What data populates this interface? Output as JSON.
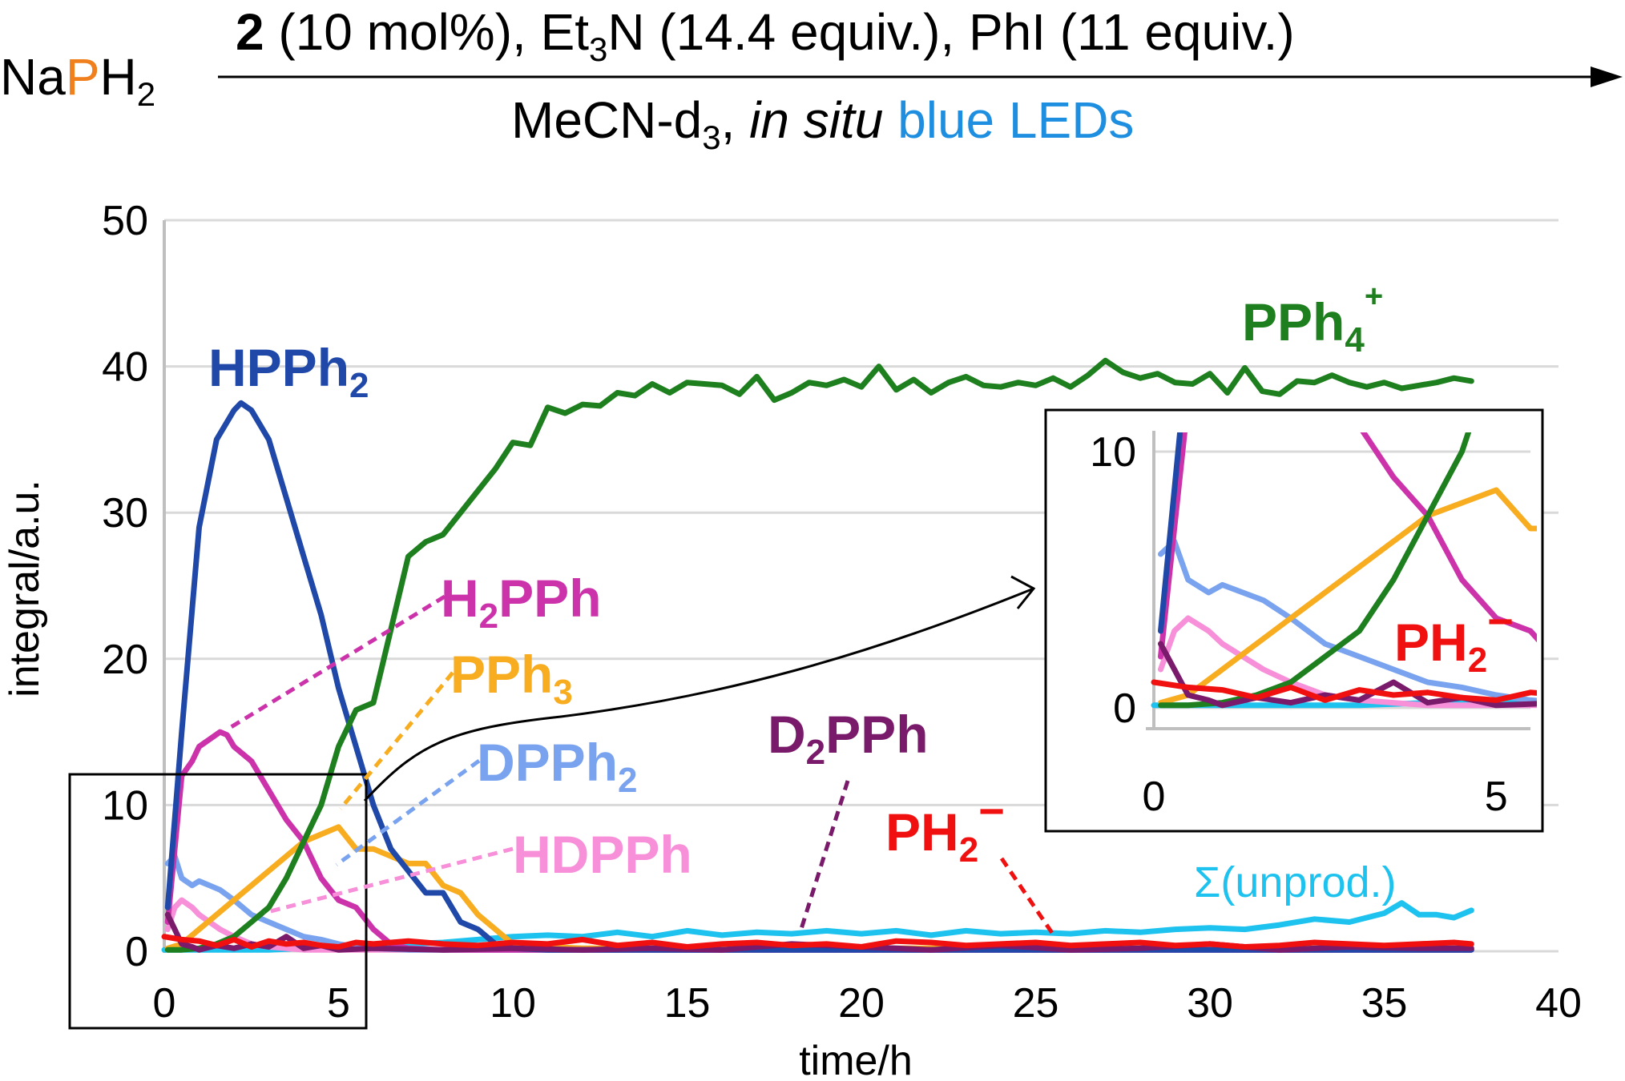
{
  "scheme": {
    "reactant_na": "Na",
    "reactant_p": "P",
    "reactant_h": "H",
    "reactant_sub": "2",
    "above_cat": "2",
    "above_rest_1": " (10 mol%), Et",
    "above_sub": "3",
    "above_rest_2": "N (14.4 equiv.), PhI (11 equiv.)",
    "below_1": "MeCN-d",
    "below_sub": "3",
    "below_2": ", ",
    "below_italic": "in situ",
    "below_blue": " blue LEDs",
    "color_p": "#f0801e",
    "color_blue_text": "#1e8fe0"
  },
  "chart_data": {
    "type": "line",
    "xlabel": "time/h",
    "ylabel": "integral/a.u.",
    "xlim": [
      0,
      40
    ],
    "ylim": [
      0,
      50
    ],
    "xticks": [
      0,
      5,
      10,
      15,
      20,
      25,
      30,
      35,
      40
    ],
    "yticks": [
      0,
      10,
      20,
      30,
      40,
      50
    ],
    "grid": "horizontal",
    "series": [
      {
        "name": "HPPh2",
        "color": "#1f48a8",
        "x": [
          0.1,
          0.5,
          1.0,
          1.5,
          2.0,
          2.2,
          2.5,
          3.0,
          3.5,
          4.0,
          4.5,
          5.0,
          5.5,
          6.0,
          6.5,
          7.0,
          7.5,
          8.0,
          8.5,
          9.0,
          9.5,
          10.0,
          11,
          12,
          14,
          16,
          18,
          20,
          22,
          24,
          26,
          28,
          30,
          32,
          34,
          36,
          37.5
        ],
        "y": [
          3,
          15,
          29,
          35,
          37,
          37.5,
          37,
          35,
          31,
          27,
          23,
          18,
          14,
          10,
          7,
          5.5,
          4,
          4,
          2,
          1.5,
          0.5,
          0.2,
          0.1,
          0.1,
          0.1,
          0.1,
          0.1,
          0.1,
          0.1,
          0.1,
          0.1,
          0.1,
          0.1,
          0.1,
          0.1,
          0.1,
          0.1
        ]
      },
      {
        "name": "PPh4+",
        "color": "#1e7f1e",
        "x": [
          0.1,
          0.5,
          1.0,
          1.5,
          2.0,
          2.5,
          3.0,
          3.5,
          4.0,
          4.5,
          5.0,
          5.5,
          6.0,
          6.5,
          7.0,
          7.5,
          8.0,
          8.5,
          9.0,
          9.5,
          10,
          10.5,
          11,
          11.5,
          12,
          12.5,
          13,
          13.5,
          14,
          14.5,
          15,
          15.5,
          16,
          16.5,
          17,
          17.5,
          18,
          18.5,
          19,
          19.5,
          20,
          20.5,
          21,
          21.5,
          22,
          22.5,
          23,
          23.5,
          24,
          24.5,
          25,
          25.5,
          26,
          26.5,
          27,
          27.5,
          28,
          28.5,
          29,
          29.5,
          30,
          30.5,
          31,
          31.5,
          32,
          32.5,
          33,
          33.5,
          34,
          34.5,
          35,
          35.5,
          36,
          36.5,
          37,
          37.5
        ],
        "y": [
          0.1,
          0.1,
          0.2,
          0.5,
          1.0,
          2.0,
          3.0,
          5.0,
          7.5,
          10.0,
          14.0,
          16.5,
          17,
          22,
          27,
          28,
          28.5,
          30,
          31.5,
          33,
          34.8,
          34.6,
          37.2,
          36.8,
          37.4,
          37.3,
          38.2,
          38.0,
          38.8,
          38.2,
          38.9,
          38.8,
          38.7,
          38.1,
          39.3,
          37.7,
          38.2,
          38.9,
          38.7,
          39.1,
          38.6,
          40.0,
          38.4,
          39.1,
          38.2,
          38.9,
          39.3,
          38.7,
          38.6,
          38.9,
          38.7,
          39.2,
          38.6,
          39.4,
          40.4,
          39.6,
          39.2,
          39.5,
          38.9,
          38.8,
          39.5,
          38.2,
          39.9,
          38.3,
          38.1,
          39.0,
          38.9,
          39.4,
          38.9,
          38.6,
          38.9,
          38.5,
          38.7,
          38.9,
          39.2,
          39.0
        ]
      },
      {
        "name": "H2PPh",
        "color": "#cc33aa",
        "x": [
          0.1,
          0.3,
          0.5,
          0.8,
          1.0,
          1.3,
          1.6,
          1.8,
          2.0,
          2.5,
          3.0,
          3.5,
          4.0,
          4.5,
          5.0,
          5.5,
          6.0,
          6.5,
          7,
          8,
          10,
          15,
          20,
          25,
          30,
          35,
          37.5
        ],
        "y": [
          2,
          7,
          12,
          13,
          14,
          14.5,
          15,
          14.8,
          14,
          13,
          11,
          9,
          7.5,
          5,
          3.5,
          3,
          1.5,
          0.5,
          0.2,
          0.1,
          0.1,
          0.1,
          0.1,
          0.1,
          0.1,
          0.1,
          0.1
        ]
      },
      {
        "name": "PPh3",
        "color": "#f7ad1f",
        "x": [
          0.1,
          0.5,
          1.0,
          1.5,
          2.0,
          2.5,
          3.0,
          3.5,
          4.0,
          4.5,
          5.0,
          5.5,
          6.0,
          6.5,
          7.0,
          7.5,
          8.0,
          8.5,
          9.0,
          9.5,
          10.0,
          11,
          12,
          14,
          16,
          18,
          20,
          25,
          30,
          35,
          37.5
        ],
        "y": [
          0.2,
          0.5,
          1.5,
          2.5,
          3.5,
          4.5,
          5.5,
          6.5,
          7.5,
          8.0,
          8.5,
          7,
          7,
          6.5,
          6,
          6,
          4.5,
          4,
          2.5,
          1.5,
          0.5,
          0.3,
          0.2,
          0.2,
          0.2,
          0.2,
          0.2,
          0.2,
          0.2,
          0.2,
          0.2
        ]
      },
      {
        "name": "DPPh2",
        "color": "#7aa3ef",
        "x": [
          0.1,
          0.3,
          0.5,
          0.8,
          1.0,
          1.3,
          1.6,
          2.0,
          2.5,
          3.0,
          3.5,
          4.0,
          4.5,
          5.0,
          5.5,
          6,
          7,
          8,
          10,
          15,
          20,
          25,
          30,
          35,
          37.5
        ],
        "y": [
          6,
          6.5,
          5,
          4.5,
          4.8,
          4.5,
          4.2,
          3.5,
          2.5,
          2,
          1.5,
          1,
          0.8,
          0.5,
          0.3,
          0.2,
          0.1,
          0.1,
          0.1,
          0.1,
          0.1,
          0.1,
          0.1,
          0.1,
          0.1
        ]
      },
      {
        "name": "HDPPh",
        "color": "#f78fd9",
        "x": [
          0.1,
          0.3,
          0.5,
          0.8,
          1.0,
          1.3,
          1.6,
          2.0,
          2.5,
          3.0,
          3.5,
          4.0,
          5,
          6,
          8,
          10,
          15,
          20,
          25,
          30,
          35,
          37.5
        ],
        "y": [
          1.5,
          3,
          3.5,
          3,
          2.5,
          2,
          1.5,
          1,
          0.5,
          0.3,
          0.2,
          0.1,
          0.1,
          0.1,
          0.1,
          0.1,
          0.1,
          0.1,
          0.1,
          0.1,
          0.1,
          0.1
        ]
      },
      {
        "name": "D2PPh",
        "color": "#7a1a6a",
        "x": [
          0.1,
          0.3,
          0.5,
          0.8,
          1.0,
          1.5,
          2.0,
          2.5,
          3.0,
          3.5,
          4.0,
          4.5,
          5.0,
          6,
          8,
          10,
          12,
          14,
          16,
          18,
          20,
          22,
          24,
          26,
          28,
          30,
          32,
          34,
          36,
          37.5
        ],
        "y": [
          2.5,
          1.5,
          0.5,
          0.3,
          0.1,
          0.4,
          0.2,
          0.5,
          0.3,
          1,
          0.2,
          0.4,
          0.1,
          0.2,
          0.1,
          0.2,
          0.1,
          0.2,
          0.1,
          0.5,
          0.3,
          0.1,
          0.4,
          0.1,
          0.2,
          0.5,
          0.1,
          0.3,
          0.2,
          0.2
        ]
      },
      {
        "name": "PH2-",
        "color": "#f01010",
        "x": [
          0,
          0.5,
          1,
          1.5,
          2,
          2.5,
          3,
          3.5,
          4,
          4.5,
          5,
          5.5,
          6,
          7,
          8,
          9,
          10,
          11,
          12,
          13,
          14,
          15,
          16,
          17,
          18,
          19,
          20,
          21,
          22,
          23,
          24,
          25,
          26,
          27,
          28,
          29,
          30,
          31,
          32,
          33,
          34,
          35,
          36,
          37,
          37.5
        ],
        "y": [
          1,
          0.8,
          0.7,
          0.4,
          0.8,
          0.3,
          0.7,
          0.5,
          0.6,
          0.4,
          0.3,
          0.6,
          0.5,
          0.7,
          0.5,
          0.4,
          0.6,
          0.5,
          0.8,
          0.4,
          0.6,
          0.3,
          0.5,
          0.6,
          0.4,
          0.5,
          0.3,
          0.7,
          0.6,
          0.4,
          0.5,
          0.6,
          0.4,
          0.5,
          0.6,
          0.4,
          0.5,
          0.3,
          0.4,
          0.6,
          0.5,
          0.4,
          0.5,
          0.6,
          0.5
        ]
      },
      {
        "name": "Σ(unprod.)",
        "color": "#1ec2ee",
        "x": [
          0,
          1,
          2,
          3,
          4,
          5,
          6,
          7,
          8,
          9,
          10,
          11,
          12,
          13,
          14,
          15,
          16,
          17,
          18,
          19,
          20,
          21,
          22,
          23,
          24,
          25,
          26,
          27,
          28,
          29,
          30,
          31,
          32,
          33,
          34,
          35,
          35.5,
          36,
          36.5,
          37,
          37.5
        ],
        "y": [
          0.1,
          0.1,
          0.1,
          0.1,
          0.2,
          0.2,
          0.3,
          0.5,
          0.6,
          0.8,
          1.0,
          1.1,
          1.0,
          1.3,
          1.0,
          1.4,
          1.1,
          1.3,
          1.2,
          1.4,
          1.2,
          1.4,
          1.1,
          1.4,
          1.2,
          1.3,
          1.2,
          1.4,
          1.3,
          1.5,
          1.6,
          1.5,
          1.8,
          2.2,
          2.0,
          2.6,
          3.3,
          2.5,
          2.5,
          2.3,
          2.8
        ]
      }
    ],
    "inset": {
      "xlim": [
        0,
        5.5
      ],
      "ylim": [
        -0.5,
        10.5
      ],
      "xticks": [
        0,
        5
      ],
      "yticks": [
        0,
        10
      ]
    }
  }
}
